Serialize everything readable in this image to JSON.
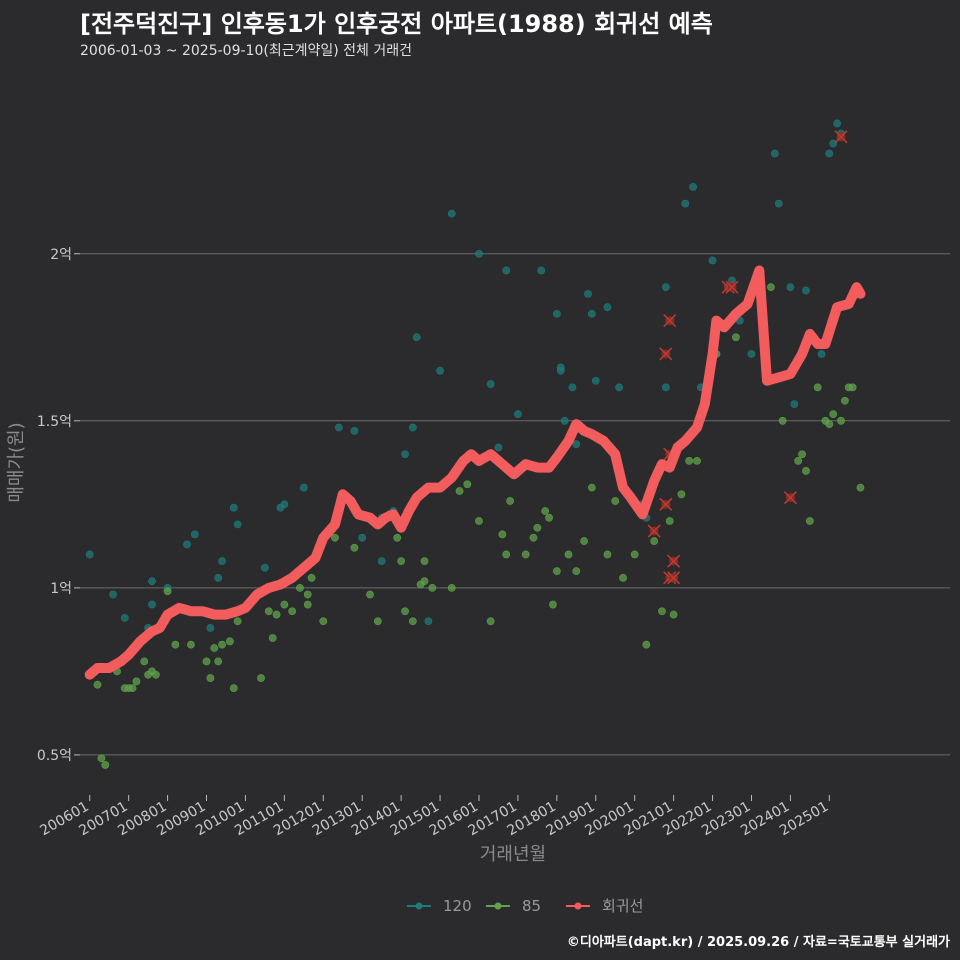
{
  "header": {
    "title": "[전주덕진구] 인후동1가 인후궁전 아파트(1988) 회귀선 예측",
    "subtitle": "2006-01-03 ~ 2025-09-10(최근계약일) 전체 거래건"
  },
  "footer": {
    "credit": "©디아파트(dapt.kr) / 2025.09.26 / 자료=국토교통부 실거래가"
  },
  "colors": {
    "background": "#2b2b2e",
    "s120": "#1f7a7a",
    "s85": "#5fa34a",
    "regression": "#f25c5c",
    "grid": "#6a6a6a"
  },
  "chart_data": {
    "type": "scatter",
    "title": "[전주덕진구] 인후동1가 인후궁전 아파트(1988) 회귀선 예측",
    "subtitle": "2006-01-03 ~ 2025-09-10(최근계약일) 전체 거래건",
    "xlabel": "거래년월",
    "ylabel": "매매가(원)",
    "xlim": [
      2005.75,
      2028.1
    ],
    "ylim": [
      0.38,
      2.55
    ],
    "y_unit": "억",
    "y_ticks": [
      {
        "v": 0.5,
        "label": "0.5억"
      },
      {
        "v": 1,
        "label": "1억"
      },
      {
        "v": 1.5,
        "label": "1.5억"
      },
      {
        "v": 2,
        "label": "2억"
      }
    ],
    "x_ticks": [
      {
        "v": 2006.0,
        "label": "200601"
      },
      {
        "v": 2007.0,
        "label": "200701"
      },
      {
        "v": 2008.0,
        "label": "200801"
      },
      {
        "v": 2009.0,
        "label": "200901"
      },
      {
        "v": 2010.0,
        "label": "201001"
      },
      {
        "v": 2011.0,
        "label": "201101"
      },
      {
        "v": 2012.0,
        "label": "201201"
      },
      {
        "v": 2013.0,
        "label": "201301"
      },
      {
        "v": 2014.0,
        "label": "201401"
      },
      {
        "v": 2015.0,
        "label": "201501"
      },
      {
        "v": 2016.0,
        "label": "201601"
      },
      {
        "v": 2017.0,
        "label": "201701"
      },
      {
        "v": 2018.0,
        "label": "201801"
      },
      {
        "v": 2019.0,
        "label": "201901"
      },
      {
        "v": 2020.0,
        "label": "202001"
      },
      {
        "v": 2021.0,
        "label": "202101"
      },
      {
        "v": 2022.0,
        "label": "202201"
      },
      {
        "v": 2023.0,
        "label": "202301"
      },
      {
        "v": 2024.0,
        "label": "202401"
      },
      {
        "v": 2025.0,
        "label": "202501"
      }
    ],
    "grid": true,
    "legend": {
      "position": "bottom",
      "items": [
        {
          "name": "120",
          "color": "#1f7a7a"
        },
        {
          "name": "85",
          "color": "#5fa34a"
        },
        {
          "name": "회귀선",
          "color": "#f25c5c"
        }
      ]
    },
    "series": [
      {
        "name": "120",
        "type": "scatter",
        "color": "#1f7a7a",
        "points": [
          [
            2006.0,
            1.1
          ],
          [
            2006.6,
            0.98
          ],
          [
            2006.9,
            0.91
          ],
          [
            2007.5,
            0.88
          ],
          [
            2007.6,
            1.02
          ],
          [
            2007.6,
            0.95
          ],
          [
            2008.0,
            1.0
          ],
          [
            2008.5,
            1.13
          ],
          [
            2008.7,
            1.16
          ],
          [
            2009.1,
            0.88
          ],
          [
            2009.3,
            1.03
          ],
          [
            2009.4,
            1.08
          ],
          [
            2009.7,
            1.24
          ],
          [
            2009.8,
            1.19
          ],
          [
            2010.5,
            1.06
          ],
          [
            2010.9,
            1.24
          ],
          [
            2011.0,
            1.25
          ],
          [
            2011.5,
            1.3
          ],
          [
            2012.4,
            1.48
          ],
          [
            2012.8,
            1.47
          ],
          [
            2013.0,
            1.15
          ],
          [
            2013.5,
            1.08
          ],
          [
            2013.5,
            1.21
          ],
          [
            2013.8,
            1.23
          ],
          [
            2014.1,
            1.4
          ],
          [
            2014.3,
            1.48
          ],
          [
            2014.4,
            1.75
          ],
          [
            2014.7,
            0.9
          ],
          [
            2015.0,
            1.65
          ],
          [
            2015.3,
            2.12
          ],
          [
            2016.0,
            2.0
          ],
          [
            2016.3,
            1.61
          ],
          [
            2016.5,
            1.42
          ],
          [
            2016.7,
            1.95
          ],
          [
            2017.0,
            1.52
          ],
          [
            2017.6,
            1.95
          ],
          [
            2018.0,
            1.82
          ],
          [
            2018.1,
            1.66
          ],
          [
            2018.1,
            1.65
          ],
          [
            2018.2,
            1.5
          ],
          [
            2018.4,
            1.6
          ],
          [
            2018.5,
            1.43
          ],
          [
            2018.8,
            1.88
          ],
          [
            2018.9,
            1.82
          ],
          [
            2019.0,
            1.62
          ],
          [
            2019.3,
            1.84
          ],
          [
            2019.6,
            1.6
          ],
          [
            2020.2,
            1.25
          ],
          [
            2020.3,
            1.21
          ],
          [
            2020.8,
            1.9
          ],
          [
            2020.8,
            1.6
          ],
          [
            2021.3,
            2.15
          ],
          [
            2021.5,
            2.2
          ],
          [
            2021.7,
            1.6
          ],
          [
            2022.0,
            1.98
          ],
          [
            2022.5,
            1.92
          ],
          [
            2022.7,
            1.8
          ],
          [
            2023.0,
            1.7
          ],
          [
            2023.6,
            2.3
          ],
          [
            2023.7,
            2.15
          ],
          [
            2024.0,
            1.9
          ],
          [
            2024.1,
            1.55
          ],
          [
            2024.4,
            1.89
          ],
          [
            2024.8,
            1.7
          ],
          [
            2025.0,
            2.3
          ],
          [
            2025.1,
            2.33
          ],
          [
            2025.2,
            2.39
          ],
          [
            2025.3,
            2.36
          ]
        ]
      },
      {
        "name": "85",
        "type": "scatter",
        "color": "#5fa34a",
        "points": [
          [
            2006.2,
            0.71
          ],
          [
            2006.3,
            0.49
          ],
          [
            2006.4,
            0.47
          ],
          [
            2006.7,
            0.75
          ],
          [
            2006.9,
            0.7
          ],
          [
            2007.0,
            0.7
          ],
          [
            2007.1,
            0.7
          ],
          [
            2007.2,
            0.72
          ],
          [
            2007.4,
            0.78
          ],
          [
            2007.5,
            0.74
          ],
          [
            2007.6,
            0.75
          ],
          [
            2007.7,
            0.74
          ],
          [
            2008.0,
            0.99
          ],
          [
            2008.2,
            0.83
          ],
          [
            2008.6,
            0.83
          ],
          [
            2009.0,
            0.78
          ],
          [
            2009.1,
            0.73
          ],
          [
            2009.2,
            0.82
          ],
          [
            2009.3,
            0.78
          ],
          [
            2009.4,
            0.83
          ],
          [
            2009.6,
            0.84
          ],
          [
            2009.7,
            0.7
          ],
          [
            2009.8,
            0.9
          ],
          [
            2010.4,
            0.73
          ],
          [
            2010.6,
            0.93
          ],
          [
            2010.7,
            0.85
          ],
          [
            2010.8,
            0.92
          ],
          [
            2011.0,
            0.95
          ],
          [
            2011.2,
            0.93
          ],
          [
            2011.4,
            1.0
          ],
          [
            2011.6,
            0.95
          ],
          [
            2011.6,
            0.98
          ],
          [
            2011.7,
            1.03
          ],
          [
            2012.0,
            0.9
          ],
          [
            2012.3,
            1.15
          ],
          [
            2012.8,
            1.12
          ],
          [
            2013.2,
            0.98
          ],
          [
            2013.4,
            0.9
          ],
          [
            2013.7,
            1.22
          ],
          [
            2013.9,
            1.15
          ],
          [
            2014.0,
            1.08
          ],
          [
            2014.1,
            0.93
          ],
          [
            2014.3,
            0.9
          ],
          [
            2014.5,
            1.01
          ],
          [
            2014.6,
            1.02
          ],
          [
            2014.6,
            1.08
          ],
          [
            2014.8,
            1.0
          ],
          [
            2015.3,
            1.0
          ],
          [
            2015.5,
            1.29
          ],
          [
            2015.7,
            1.31
          ],
          [
            2016.0,
            1.2
          ],
          [
            2016.3,
            0.9
          ],
          [
            2016.6,
            1.16
          ],
          [
            2016.7,
            1.1
          ],
          [
            2016.8,
            1.26
          ],
          [
            2017.2,
            1.1
          ],
          [
            2017.4,
            1.15
          ],
          [
            2017.5,
            1.18
          ],
          [
            2017.7,
            1.23
          ],
          [
            2017.8,
            1.21
          ],
          [
            2017.9,
            0.95
          ],
          [
            2018.0,
            1.05
          ],
          [
            2018.3,
            1.1
          ],
          [
            2018.5,
            1.05
          ],
          [
            2018.7,
            1.14
          ],
          [
            2018.9,
            1.3
          ],
          [
            2019.3,
            1.1
          ],
          [
            2019.5,
            1.26
          ],
          [
            2019.7,
            1.03
          ],
          [
            2020.0,
            1.1
          ],
          [
            2020.3,
            0.83
          ],
          [
            2020.5,
            1.14
          ],
          [
            2020.7,
            0.93
          ],
          [
            2020.9,
            1.2
          ],
          [
            2021.0,
            0.92
          ],
          [
            2021.2,
            1.28
          ],
          [
            2021.4,
            1.38
          ],
          [
            2021.6,
            1.38
          ],
          [
            2022.1,
            1.7
          ],
          [
            2022.4,
            1.9
          ],
          [
            2022.6,
            1.75
          ],
          [
            2023.5,
            1.9
          ],
          [
            2023.8,
            1.5
          ],
          [
            2024.2,
            1.38
          ],
          [
            2024.3,
            1.4
          ],
          [
            2024.4,
            1.35
          ],
          [
            2024.5,
            1.2
          ],
          [
            2024.7,
            1.6
          ],
          [
            2024.9,
            1.5
          ],
          [
            2025.0,
            1.49
          ],
          [
            2025.1,
            1.52
          ],
          [
            2025.3,
            1.5
          ],
          [
            2025.4,
            1.56
          ],
          [
            2025.5,
            1.6
          ],
          [
            2025.6,
            1.6
          ],
          [
            2025.8,
            1.3
          ]
        ]
      },
      {
        "name": "회귀선",
        "type": "line",
        "color": "#f25c5c",
        "points": [
          [
            2006.0,
            0.74
          ],
          [
            2006.2,
            0.76
          ],
          [
            2006.5,
            0.76
          ],
          [
            2006.8,
            0.78
          ],
          [
            2007.0,
            0.8
          ],
          [
            2007.3,
            0.84
          ],
          [
            2007.6,
            0.87
          ],
          [
            2007.8,
            0.88
          ],
          [
            2008.0,
            0.92
          ],
          [
            2008.3,
            0.94
          ],
          [
            2008.6,
            0.93
          ],
          [
            2008.9,
            0.93
          ],
          [
            2009.2,
            0.92
          ],
          [
            2009.5,
            0.92
          ],
          [
            2009.8,
            0.93
          ],
          [
            2010.0,
            0.94
          ],
          [
            2010.3,
            0.98
          ],
          [
            2010.6,
            1.0
          ],
          [
            2010.9,
            1.01
          ],
          [
            2011.2,
            1.03
          ],
          [
            2011.5,
            1.06
          ],
          [
            2011.8,
            1.09
          ],
          [
            2012.0,
            1.15
          ],
          [
            2012.3,
            1.19
          ],
          [
            2012.5,
            1.28
          ],
          [
            2012.7,
            1.26
          ],
          [
            2012.9,
            1.22
          ],
          [
            2013.2,
            1.21
          ],
          [
            2013.4,
            1.19
          ],
          [
            2013.6,
            1.21
          ],
          [
            2013.8,
            1.22
          ],
          [
            2014.0,
            1.18
          ],
          [
            2014.2,
            1.23
          ],
          [
            2014.4,
            1.27
          ],
          [
            2014.7,
            1.3
          ],
          [
            2015.0,
            1.3
          ],
          [
            2015.3,
            1.33
          ],
          [
            2015.6,
            1.38
          ],
          [
            2015.8,
            1.4
          ],
          [
            2016.0,
            1.38
          ],
          [
            2016.3,
            1.4
          ],
          [
            2016.6,
            1.37
          ],
          [
            2016.9,
            1.34
          ],
          [
            2017.2,
            1.37
          ],
          [
            2017.5,
            1.36
          ],
          [
            2017.8,
            1.36
          ],
          [
            2018.0,
            1.39
          ],
          [
            2018.3,
            1.44
          ],
          [
            2018.5,
            1.49
          ],
          [
            2018.7,
            1.47
          ],
          [
            2018.9,
            1.46
          ],
          [
            2019.2,
            1.44
          ],
          [
            2019.5,
            1.4
          ],
          [
            2019.7,
            1.3
          ],
          [
            2019.9,
            1.27
          ],
          [
            2020.2,
            1.22
          ],
          [
            2020.5,
            1.32
          ],
          [
            2020.7,
            1.37
          ],
          [
            2020.9,
            1.36
          ],
          [
            2021.1,
            1.42
          ],
          [
            2021.3,
            1.44
          ],
          [
            2021.6,
            1.48
          ],
          [
            2021.8,
            1.55
          ],
          [
            2022.0,
            1.7
          ],
          [
            2022.1,
            1.8
          ],
          [
            2022.3,
            1.78
          ],
          [
            2022.6,
            1.82
          ],
          [
            2022.9,
            1.85
          ],
          [
            2023.2,
            1.95
          ],
          [
            2023.4,
            1.62
          ],
          [
            2023.7,
            1.63
          ],
          [
            2024.0,
            1.64
          ],
          [
            2024.3,
            1.7
          ],
          [
            2024.5,
            1.76
          ],
          [
            2024.7,
            1.73
          ],
          [
            2024.9,
            1.73
          ],
          [
            2025.2,
            1.84
          ],
          [
            2025.5,
            1.85
          ],
          [
            2025.7,
            1.9
          ],
          [
            2025.8,
            1.88
          ]
        ]
      }
    ],
    "highlighted_points": [
      [
        2020.5,
        1.17
      ],
      [
        2020.9,
        1.8
      ],
      [
        2020.8,
        1.7
      ],
      [
        2020.9,
        1.4
      ],
      [
        2020.8,
        1.25
      ],
      [
        2021.0,
        1.08
      ],
      [
        2020.9,
        1.03
      ],
      [
        2021.0,
        1.03
      ],
      [
        2022.4,
        1.9
      ],
      [
        2022.5,
        1.9
      ],
      [
        2024.0,
        1.27
      ],
      [
        2025.3,
        2.35
      ]
    ]
  }
}
